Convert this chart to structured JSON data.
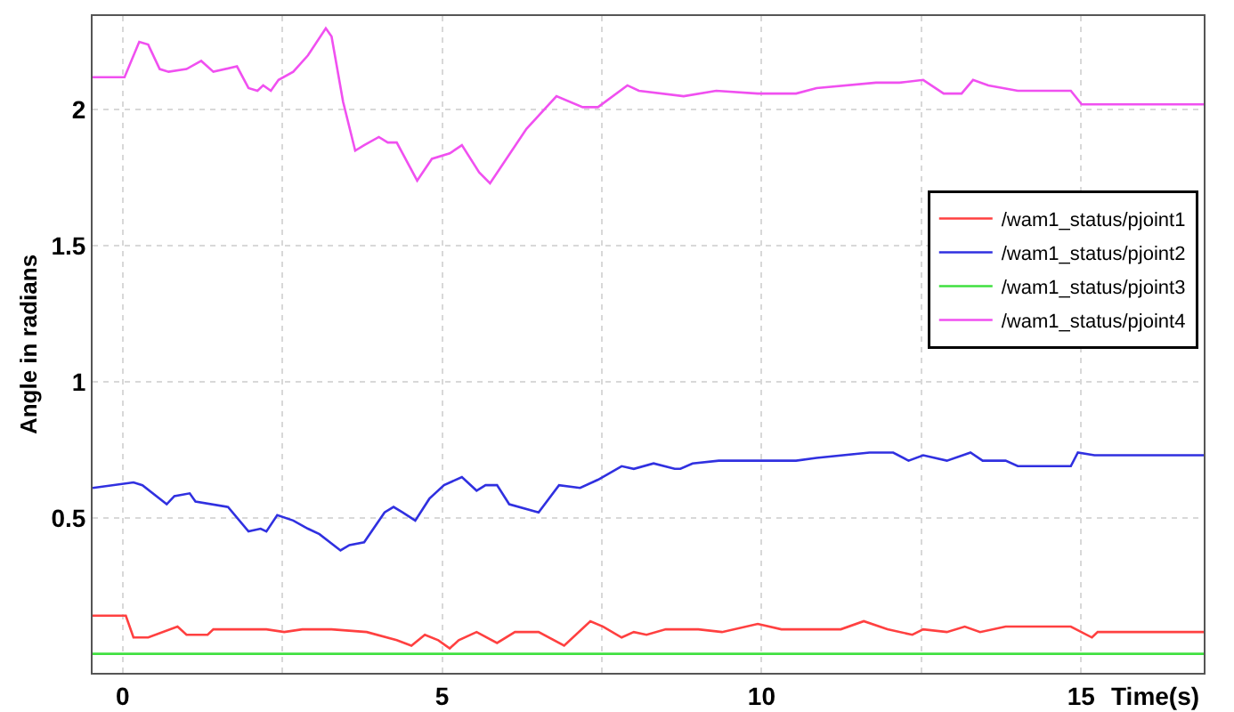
{
  "chart_data": {
    "type": "line",
    "xlabel": "Time(s)",
    "ylabel": "Angle in radians",
    "xlim": [
      -0.47,
      16.92
    ],
    "ylim": [
      -0.07,
      2.345
    ],
    "xticks": [
      0,
      {
        "value": 2.5,
        "label": null
      },
      5,
      {
        "value": 7.5,
        "label": null
      },
      10,
      {
        "value": 12.5,
        "label": null
      },
      15
    ],
    "yticks": [
      {
        "value": 0,
        "label": null
      },
      0.5,
      1,
      1.5,
      2
    ],
    "grid": true,
    "legend": "right",
    "marker": "none",
    "line_style": "solid",
    "series": [
      {
        "name": "/wam1_status/pjoint1",
        "color": "#ff4040",
        "x": [
          -0.47,
          0.05,
          0.17,
          0.4,
          0.86,
          1.0,
          1.33,
          1.42,
          2.25,
          2.53,
          2.81,
          3.27,
          3.82,
          4.29,
          4.52,
          4.73,
          4.94,
          5.12,
          5.26,
          5.54,
          5.86,
          6.14,
          6.51,
          6.91,
          7.32,
          7.52,
          7.81,
          8.0,
          8.2,
          8.5,
          8.73,
          9.01,
          9.38,
          9.94,
          10.31,
          11.24,
          11.6,
          11.97,
          12.36,
          12.53,
          12.9,
          13.18,
          13.42,
          13.82,
          14.05,
          14.84,
          15.17,
          15.26,
          16.92
        ],
        "values": [
          0.14,
          0.14,
          0.06,
          0.06,
          0.1,
          0.07,
          0.07,
          0.09,
          0.09,
          0.08,
          0.09,
          0.09,
          0.08,
          0.05,
          0.03,
          0.07,
          0.05,
          0.02,
          0.05,
          0.08,
          0.04,
          0.08,
          0.08,
          0.03,
          0.12,
          0.1,
          0.06,
          0.08,
          0.07,
          0.09,
          0.09,
          0.09,
          0.08,
          0.11,
          0.09,
          0.09,
          0.12,
          0.09,
          0.07,
          0.09,
          0.08,
          0.1,
          0.08,
          0.1,
          0.1,
          0.1,
          0.06,
          0.08,
          0.08
        ]
      },
      {
        "name": "/wam1_status/pjoint2",
        "color": "#3030e0",
        "x": [
          -0.47,
          0.17,
          0.31,
          0.69,
          0.81,
          1.05,
          1.14,
          1.65,
          1.97,
          2.16,
          2.25,
          2.42,
          2.67,
          2.9,
          3.08,
          3.41,
          3.55,
          3.78,
          4.1,
          4.24,
          4.38,
          4.58,
          4.8,
          5.03,
          5.31,
          5.54,
          5.68,
          5.86,
          6.05,
          6.51,
          6.83,
          7.16,
          7.44,
          7.81,
          8.0,
          8.31,
          8.64,
          8.73,
          8.92,
          9.33,
          9.98,
          10.54,
          10.86,
          11.69,
          12.06,
          12.3,
          12.53,
          12.9,
          13.27,
          13.46,
          13.82,
          14.01,
          14.84,
          14.95,
          15.21,
          16.92
        ],
        "values": [
          0.61,
          0.63,
          0.62,
          0.55,
          0.58,
          0.59,
          0.56,
          0.54,
          0.45,
          0.46,
          0.45,
          0.51,
          0.49,
          0.46,
          0.44,
          0.38,
          0.4,
          0.41,
          0.52,
          0.54,
          0.52,
          0.49,
          0.57,
          0.62,
          0.65,
          0.6,
          0.62,
          0.62,
          0.55,
          0.52,
          0.62,
          0.61,
          0.64,
          0.69,
          0.68,
          0.7,
          0.68,
          0.68,
          0.7,
          0.71,
          0.71,
          0.71,
          0.72,
          0.74,
          0.74,
          0.71,
          0.73,
          0.71,
          0.74,
          0.71,
          0.71,
          0.69,
          0.69,
          0.74,
          0.73,
          0.73
        ]
      },
      {
        "name": "/wam1_status/pjoint3",
        "color": "#40e040",
        "x": [
          -0.47,
          16.92
        ],
        "values": [
          0.0,
          0.0
        ]
      },
      {
        "name": "/wam1_status/pjoint4",
        "color": "#f050f0",
        "x": [
          -0.47,
          0.03,
          0.26,
          0.4,
          0.58,
          0.72,
          1.0,
          1.23,
          1.42,
          1.79,
          1.97,
          2.11,
          2.2,
          2.32,
          2.44,
          2.67,
          2.9,
          3.18,
          3.27,
          3.45,
          3.64,
          3.78,
          4.01,
          4.15,
          4.29,
          4.61,
          4.84,
          5.12,
          5.31,
          5.58,
          5.75,
          5.95,
          6.32,
          6.79,
          7.2,
          7.44,
          7.9,
          8.08,
          8.78,
          9.29,
          9.94,
          10.54,
          10.86,
          11.79,
          12.16,
          12.53,
          12.85,
          13.13,
          13.31,
          13.55,
          14.01,
          14.84,
          15.01,
          16.92
        ],
        "values": [
          2.12,
          2.12,
          2.25,
          2.24,
          2.15,
          2.14,
          2.15,
          2.18,
          2.14,
          2.16,
          2.08,
          2.07,
          2.09,
          2.07,
          2.11,
          2.14,
          2.2,
          2.3,
          2.27,
          2.03,
          1.85,
          1.87,
          1.9,
          1.88,
          1.88,
          1.74,
          1.82,
          1.84,
          1.87,
          1.77,
          1.73,
          1.8,
          1.93,
          2.05,
          2.01,
          2.01,
          2.09,
          2.07,
          2.05,
          2.07,
          2.06,
          2.06,
          2.08,
          2.1,
          2.1,
          2.11,
          2.06,
          2.06,
          2.11,
          2.09,
          2.07,
          2.07,
          2.02,
          2.02
        ]
      }
    ]
  }
}
